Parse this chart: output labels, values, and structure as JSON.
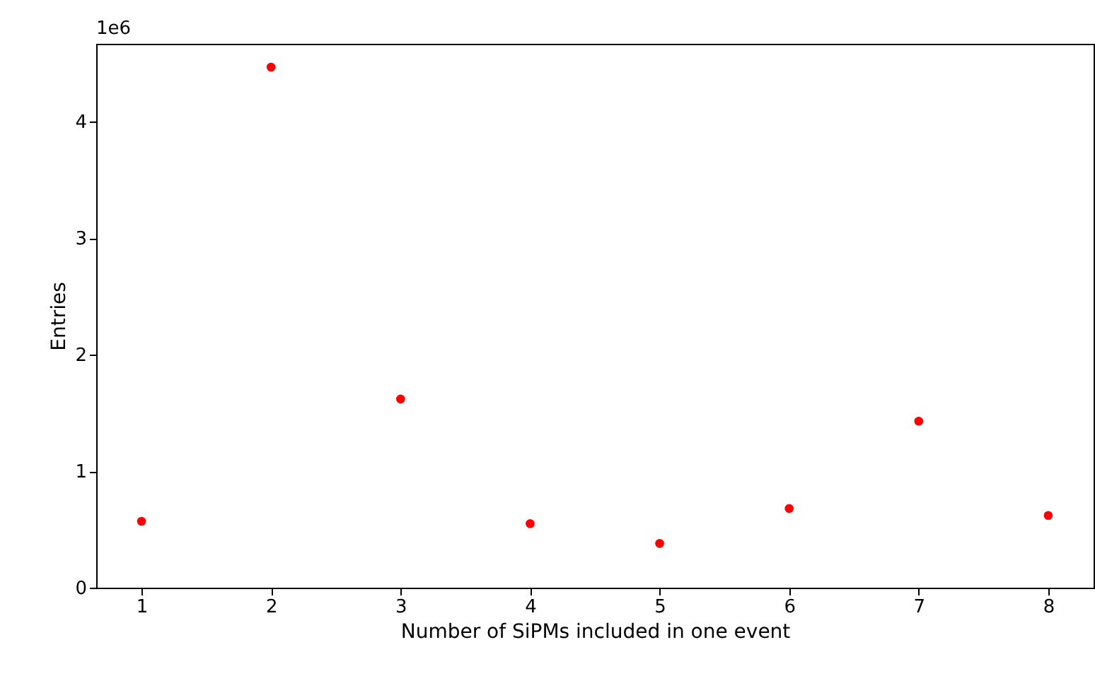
{
  "chart_data": {
    "type": "scatter",
    "xlabel": "Number of SiPMs included in one event",
    "ylabel": "Entries",
    "annotations": [
      "1e6"
    ],
    "x": [
      1,
      2,
      3,
      4,
      5,
      6,
      7,
      8
    ],
    "series": [
      {
        "color": "#ff0000",
        "values": [
          0.57,
          4.47,
          1.62,
          0.55,
          0.38,
          0.68,
          1.43,
          0.62
        ]
      }
    ],
    "xlim": [
      0.65,
      8.35
    ],
    "ylim": [
      0,
      4.67
    ],
    "xticks": [
      1,
      2,
      3,
      4,
      5,
      6,
      7,
      8
    ],
    "yticks": [
      0,
      1,
      2,
      3,
      4
    ],
    "grid": false,
    "marker": "circle"
  }
}
